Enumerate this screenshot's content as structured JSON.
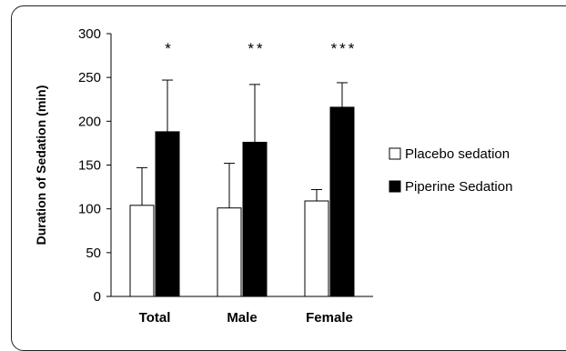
{
  "chart_data": {
    "type": "bar",
    "title": "",
    "xlabel": "",
    "ylabel": "Duration of Sedation (min)",
    "ylim": [
      0,
      300
    ],
    "yticks": [
      0,
      50,
      100,
      150,
      200,
      250,
      300
    ],
    "categories": [
      "Total",
      "Male",
      "Female"
    ],
    "series": [
      {
        "name": "Placebo sedation",
        "color": "#ffffff",
        "values": [
          104,
          101,
          109
        ],
        "error_plus": [
          43,
          51,
          13
        ]
      },
      {
        "name": "Piperine Sedation",
        "color": "#000000",
        "values": [
          188,
          176,
          216
        ],
        "error_plus": [
          59,
          66,
          28
        ]
      }
    ],
    "annotations": [
      "*",
      "**",
      "***"
    ],
    "legend_position": "right",
    "grid": false
  }
}
